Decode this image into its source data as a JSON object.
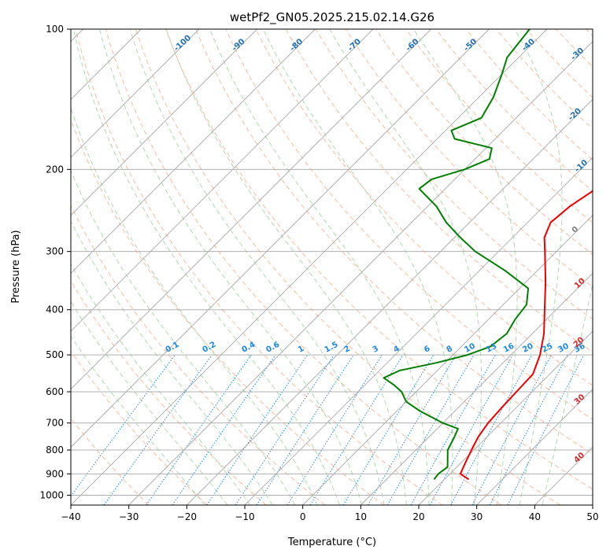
{
  "chart_data": {
    "type": "line",
    "title": "wetPf2_GN05.2025.215.02.14.G26",
    "xlabel": "Temperature (°C)",
    "ylabel": "Pressure (hPa)",
    "x_ticks": [
      -40,
      -30,
      -20,
      -10,
      0,
      10,
      20,
      30,
      40,
      50
    ],
    "y_ticks": [
      100,
      200,
      300,
      400,
      500,
      600,
      700,
      800,
      900,
      1000
    ],
    "xlim": [
      -40,
      50
    ],
    "ylim": [
      1050,
      100
    ],
    "yscale": "log",
    "grid": true,
    "colors": {
      "temperature": "#ee0000",
      "dewpoint": "#008000",
      "isotherm": "#a8a8a8",
      "dry_adiabat": "#f5a580",
      "moist_adiabat": "#a8d4a8",
      "mixing_ratio": "#1e88e5",
      "isotherm_label": "#1f6fb2",
      "isobar": "#b0b0b0"
    },
    "series": [
      {
        "role": "temperature",
        "points": [
          {
            "p": 925,
            "t": 24.2
          },
          {
            "p": 900,
            "t": 21.8
          },
          {
            "p": 850,
            "t": 20.7
          },
          {
            "p": 800,
            "t": 19.6
          },
          {
            "p": 750,
            "t": 18.5
          },
          {
            "p": 700,
            "t": 17.8
          },
          {
            "p": 650,
            "t": 17.5
          },
          {
            "p": 600,
            "t": 17.3
          },
          {
            "p": 550,
            "t": 17.1
          },
          {
            "p": 500,
            "t": 15.0
          },
          {
            "p": 450,
            "t": 12.0
          },
          {
            "p": 400,
            "t": 8.0
          },
          {
            "p": 350,
            "t": 3.5
          },
          {
            "p": 300,
            "t": -2.0
          },
          {
            "p": 280,
            "t": -4.5
          },
          {
            "p": 260,
            "t": -6.0
          },
          {
            "p": 240,
            "t": -5.5
          },
          {
            "p": 220,
            "t": -4.0
          },
          {
            "p": 200,
            "t": -5.0
          },
          {
            "p": 180,
            "t": -8.0
          },
          {
            "p": 160,
            "t": -11.5
          },
          {
            "p": 140,
            "t": -15.0
          },
          {
            "p": 120,
            "t": -19.5
          },
          {
            "p": 100,
            "t": -26.0
          }
        ]
      },
      {
        "role": "dewpoint",
        "points": [
          {
            "p": 925,
            "t": 18.2
          },
          {
            "p": 900,
            "t": 18.0
          },
          {
            "p": 870,
            "t": 18.4
          },
          {
            "p": 850,
            "t": 17.6
          },
          {
            "p": 800,
            "t": 15.5
          },
          {
            "p": 750,
            "t": 14.4
          },
          {
            "p": 720,
            "t": 13.6
          },
          {
            "p": 700,
            "t": 10.0
          },
          {
            "p": 660,
            "t": 4.0
          },
          {
            "p": 630,
            "t": 0.0
          },
          {
            "p": 600,
            "t": -2.5
          },
          {
            "p": 580,
            "t": -5.0
          },
          {
            "p": 560,
            "t": -8.0
          },
          {
            "p": 540,
            "t": -6.5
          },
          {
            "p": 520,
            "t": -1.5
          },
          {
            "p": 500,
            "t": 2.5
          },
          {
            "p": 480,
            "t": 5.0
          },
          {
            "p": 450,
            "t": 5.6
          },
          {
            "p": 420,
            "t": 4.6
          },
          {
            "p": 390,
            "t": 4.0
          },
          {
            "p": 360,
            "t": 1.5
          },
          {
            "p": 330,
            "t": -5.5
          },
          {
            "p": 300,
            "t": -14.0
          },
          {
            "p": 280,
            "t": -19.0
          },
          {
            "p": 260,
            "t": -24.0
          },
          {
            "p": 240,
            "t": -28.5
          },
          {
            "p": 220,
            "t": -34.5
          },
          {
            "p": 210,
            "t": -34.0
          },
          {
            "p": 200,
            "t": -30.0
          },
          {
            "p": 190,
            "t": -27.5
          },
          {
            "p": 180,
            "t": -29.0
          },
          {
            "p": 172,
            "t": -37.0
          },
          {
            "p": 165,
            "t": -39.0
          },
          {
            "p": 155,
            "t": -36.0
          },
          {
            "p": 140,
            "t": -37.5
          },
          {
            "p": 125,
            "t": -40.0
          },
          {
            "p": 115,
            "t": -42.0
          },
          {
            "p": 100,
            "t": -43.0
          }
        ]
      }
    ],
    "isotherm_labels": [
      "-100",
      "-90",
      "-80",
      "-70",
      "-60",
      "-50",
      "-40",
      "-30",
      "-20",
      "-10",
      "0",
      "10",
      "20",
      "30",
      "40"
    ],
    "mixing_ratio_labels": [
      "0.1",
      "0.2",
      "0.4",
      "0.6",
      "1",
      "1.5",
      "2",
      "3",
      "4",
      "6",
      "8",
      "10",
      "13",
      "16",
      "20",
      "25",
      "30",
      "36"
    ],
    "mixing_ratio_values": [
      0.1,
      0.2,
      0.4,
      0.6,
      1,
      1.5,
      2,
      3,
      4,
      6,
      8,
      10,
      13,
      16,
      20,
      25,
      30,
      36
    ]
  }
}
